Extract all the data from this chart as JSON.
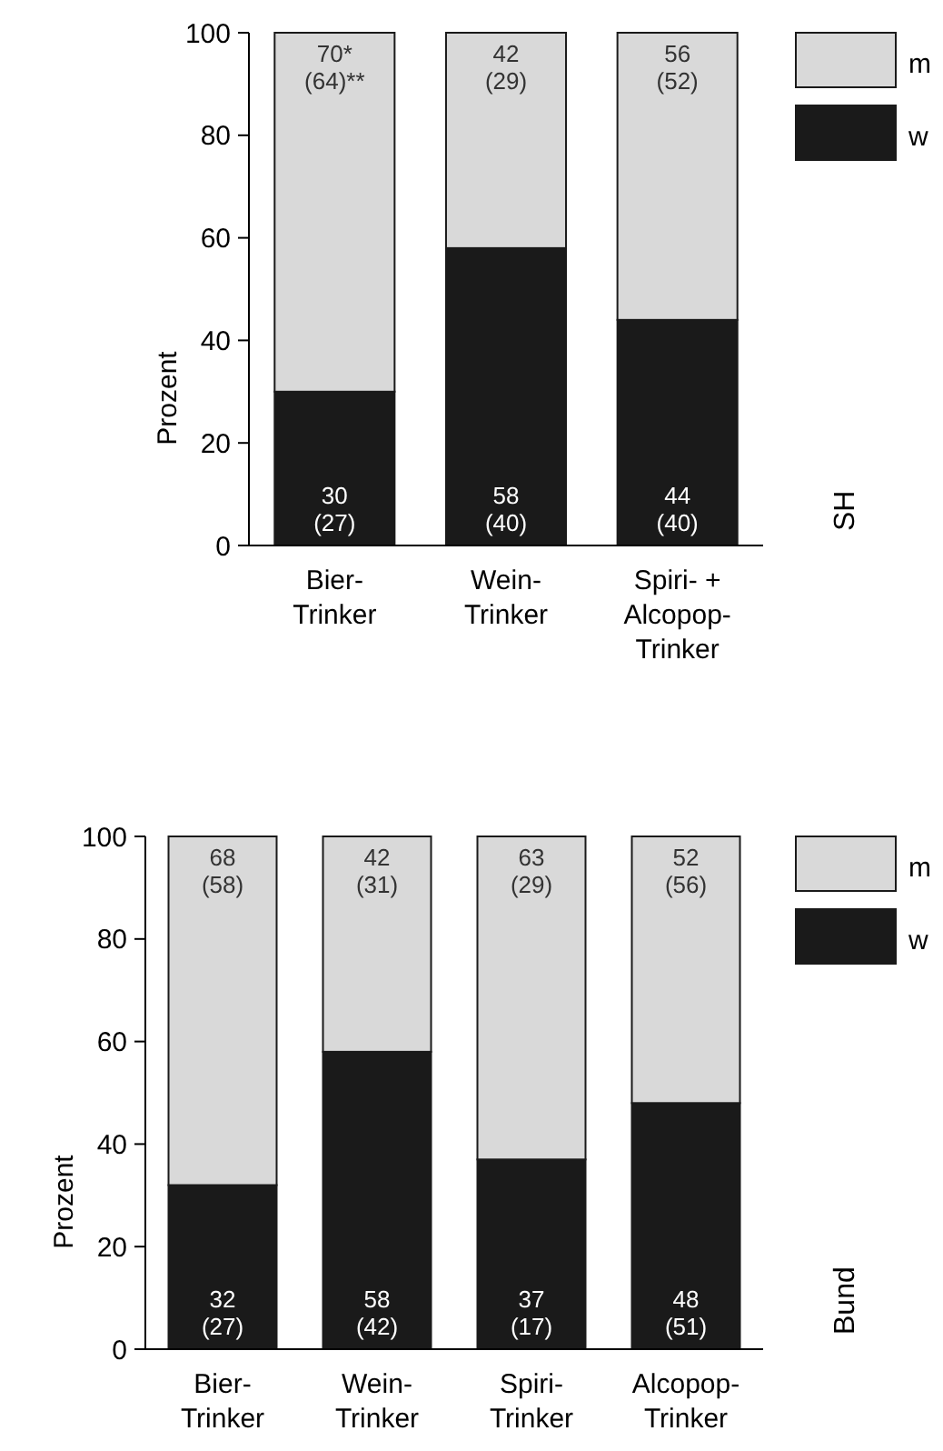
{
  "chart_data": [
    {
      "type": "bar",
      "stacked": true,
      "ylabel": "Prozent",
      "categories": [
        "Bier-\nTrinker",
        "Wein-\nTrinker",
        "Spiri- +\nAlcopop-\nTrinker"
      ],
      "ylim": [
        0,
        100
      ],
      "yticks": [
        0,
        20,
        40,
        60,
        80,
        100
      ],
      "legend": "top right",
      "annotations": [
        "SH"
      ],
      "series": [
        {
          "name": "w",
          "color": "#1a1a1a",
          "values": [
            30,
            58,
            44
          ],
          "value_labels": [
            "30\n(27)",
            "58\n(40)",
            "44\n(40)"
          ]
        },
        {
          "name": "m",
          "color": "#d9d9d9",
          "values": [
            70,
            42,
            56
          ],
          "value_labels": [
            "70*\n(64)**",
            "42\n(29)",
            "56\n(52)"
          ]
        }
      ]
    },
    {
      "type": "bar",
      "stacked": true,
      "ylabel": "Prozent",
      "categories": [
        "Bier-\nTrinker",
        "Wein-\nTrinker",
        "Spiri-\nTrinker",
        "Alcopop-\nTrinker"
      ],
      "ylim": [
        0,
        100
      ],
      "yticks": [
        0,
        20,
        40,
        60,
        80,
        100
      ],
      "legend": "top right",
      "annotations": [
        "Bund"
      ],
      "series": [
        {
          "name": "w",
          "color": "#1a1a1a",
          "values": [
            32,
            58,
            37,
            48
          ],
          "value_labels": [
            "32\n(27)",
            "58\n(42)",
            "37\n(17)",
            "48\n(51)"
          ]
        },
        {
          "name": "m",
          "color": "#d9d9d9",
          "values": [
            68,
            42,
            63,
            52
          ],
          "value_labels": [
            "68\n(58)",
            "42\n(31)",
            "63\n(29)",
            "52\n(56)"
          ]
        }
      ]
    }
  ]
}
